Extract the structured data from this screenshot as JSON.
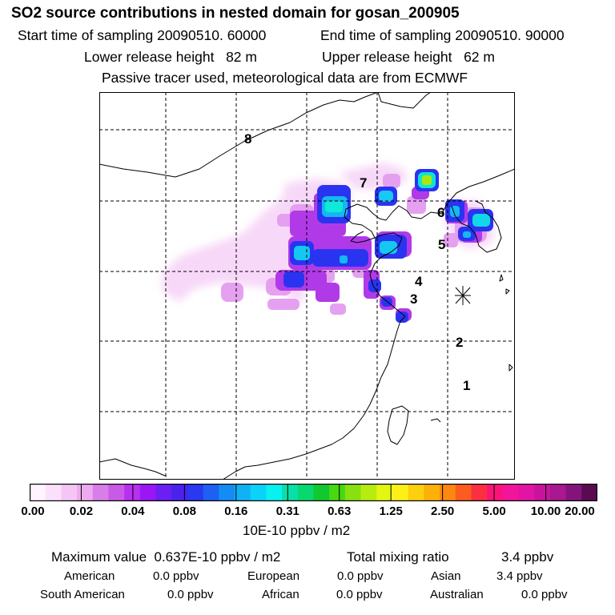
{
  "title": "SO2 source contributions in nested domain for gosan_200905",
  "header": {
    "start_label": "Start time of sampling",
    "start_value": "20090510. 60000",
    "end_label": "End time of sampling",
    "end_value": "20090510. 90000",
    "lower_label": "Lower release height",
    "lower_value": "82 m",
    "upper_label": "Upper release height",
    "upper_value": "62 m",
    "note": "Passive tracer used, meteorological data are from ECMWF"
  },
  "map": {
    "region_labels": [
      "1",
      "2",
      "3",
      "4",
      "5",
      "6",
      "7",
      "8"
    ],
    "receptor_marker": "asterisk-receptor-gosan"
  },
  "colorbar": {
    "colors": [
      "#fff4ff",
      "#fbe0fb",
      "#f5c6f5",
      "#eeaaee",
      "#d87ee8",
      "#c95ae6",
      "#b830f0",
      "#9a16f4",
      "#6a20f2",
      "#4a22ee",
      "#2a38f0",
      "#1e60f2",
      "#148cf4",
      "#10b2f6",
      "#0ad2f8",
      "#08f0f0",
      "#08e0a8",
      "#08d870",
      "#10c830",
      "#48d810",
      "#88e010",
      "#b8ec10",
      "#e4f610",
      "#fcf018",
      "#fcd00c",
      "#fcb008",
      "#fc8810",
      "#fc5c20",
      "#fa3040",
      "#fa1478",
      "#f2149c",
      "#e214a4",
      "#c8149c",
      "#a81890",
      "#84147c",
      "#5a0a50"
    ],
    "tick_labels": [
      "0.00",
      "0.02",
      "0.04",
      "0.08",
      "0.16",
      "0.31",
      "0.63",
      "1.25",
      "2.50",
      "5.00",
      "10.00",
      "20.00"
    ],
    "unit": "10E-10 ppbv / m2"
  },
  "stats": {
    "max_label": "Maximum value",
    "max_value": "0.637E-10 ppbv / m2",
    "total_label": "Total mixing ratio",
    "total_value": "3.4 ppbv",
    "american_label": "American",
    "american_value": "0.0 ppbv",
    "european_label": "European",
    "european_value": "0.0 ppbv",
    "asian_label": "Asian",
    "asian_value": "3.4 ppbv",
    "south_american_label": "South American",
    "south_american_value": "0.0 ppbv",
    "african_label": "African",
    "african_value": "0.0 ppbv",
    "australian_label": "Australian",
    "australian_value": "0.0 ppbv"
  }
}
